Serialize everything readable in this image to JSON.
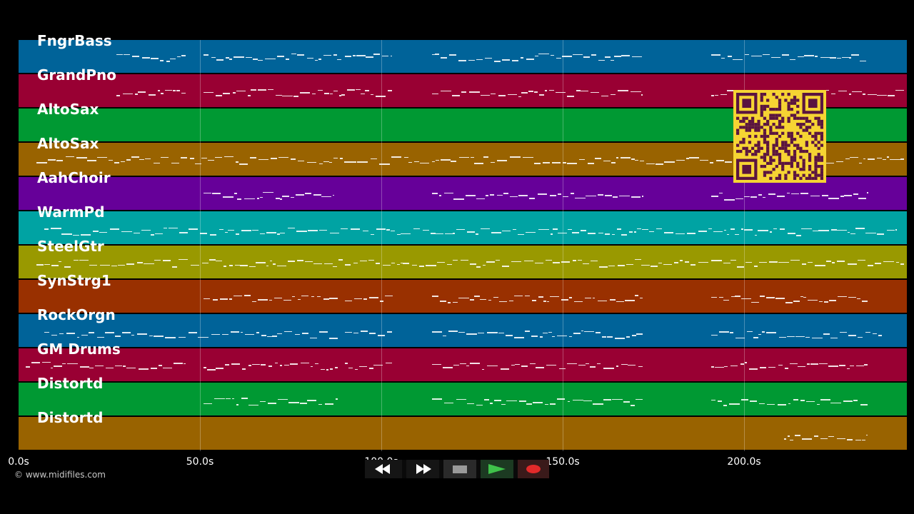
{
  "tracks": [
    {
      "name": "FngrBass",
      "color": "#006399"
    },
    {
      "name": "GrandPno",
      "color": "#990033"
    },
    {
      "name": "AltoSax",
      "color": "#009933"
    },
    {
      "name": "AltoSax",
      "color": "#996300"
    },
    {
      "name": "AahChoir",
      "color": "#660099"
    },
    {
      "name": "WarmPd",
      "color": "#00a3a3"
    },
    {
      "name": "SteelGtr",
      "color": "#999900"
    },
    {
      "name": "SynStrg1",
      "color": "#993000"
    },
    {
      "name": "RockOrgn",
      "color": "#006399"
    },
    {
      "name": "GM Drums",
      "color": "#990033"
    },
    {
      "name": "Distortd",
      "color": "#009933"
    },
    {
      "name": "Distortd",
      "color": "#996300"
    }
  ],
  "time_axis": {
    "ticks": [
      {
        "seconds": 0,
        "label": "0.0s"
      },
      {
        "seconds": 50,
        "label": "50.0s"
      },
      {
        "seconds": 100,
        "label": "100.0s"
      },
      {
        "seconds": 150,
        "label": "150.0s"
      },
      {
        "seconds": 200,
        "label": "200.0s"
      }
    ],
    "max_seconds": 245
  },
  "note_activity": [
    [
      [
        27,
        46
      ],
      [
        51,
        89
      ],
      [
        90,
        103
      ],
      [
        114,
        172
      ],
      [
        191,
        234
      ]
    ],
    [
      [
        27,
        46
      ],
      [
        51,
        89
      ],
      [
        89,
        103
      ],
      [
        114,
        172
      ],
      [
        191,
        244
      ]
    ],
    [],
    [
      [
        5,
        244
      ]
    ],
    [
      [
        51,
        87
      ],
      [
        114,
        172
      ],
      [
        191,
        234
      ]
    ],
    [
      [
        7,
        242
      ]
    ],
    [
      [
        5,
        244
      ]
    ],
    [
      [
        51,
        88
      ],
      [
        90,
        103
      ],
      [
        114,
        172
      ],
      [
        191,
        234
      ]
    ],
    [
      [
        7,
        88
      ],
      [
        90,
        103
      ],
      [
        114,
        172
      ],
      [
        191,
        238
      ]
    ],
    [
      [
        2,
        46
      ],
      [
        51,
        88
      ],
      [
        90,
        103
      ],
      [
        114,
        172
      ],
      [
        191,
        234
      ]
    ],
    [
      [
        51,
        88
      ],
      [
        114,
        172
      ],
      [
        191,
        234
      ]
    ],
    [
      [
        211,
        234
      ]
    ]
  ],
  "copyright": "© www.midifiles.com",
  "transport": {
    "buttons": [
      {
        "name": "rewind-button",
        "icon": "rewind-icon"
      },
      {
        "name": "fast-forward-button",
        "icon": "fast-forward-icon"
      },
      {
        "name": "stop-button",
        "icon": "stop-icon"
      },
      {
        "name": "play-button",
        "icon": "play-icon"
      },
      {
        "name": "record-button",
        "icon": "record-icon"
      }
    ]
  }
}
